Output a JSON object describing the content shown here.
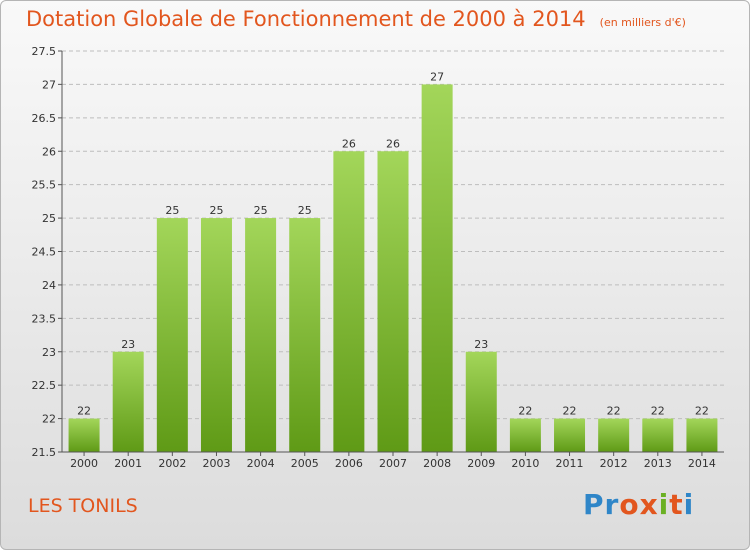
{
  "header": {
    "title": "Dotation Globale de Fonctionnement de 2000 à 2014",
    "unit": "(en milliers d'€)"
  },
  "footer": {
    "place": "LES TONILS",
    "logo_text": "Proxiti"
  },
  "colors": {
    "accent": "#e2561e",
    "bar_top": "#a3d65a",
    "bar_bottom": "#5f9a16",
    "logo": [
      "#2f86c8",
      "#2f86c8",
      "#e2561e",
      "#e2561e",
      "#6ab023",
      "#e2561e",
      "#2f86c8"
    ]
  },
  "chart_data": {
    "type": "bar",
    "title": "Dotation Globale de Fonctionnement de 2000 à 2014",
    "subtitle": "(en milliers d'€)",
    "xlabel": "",
    "ylabel": "",
    "categories": [
      "2000",
      "2001",
      "2002",
      "2003",
      "2004",
      "2005",
      "2006",
      "2007",
      "2008",
      "2009",
      "2010",
      "2011",
      "2012",
      "2013",
      "2014"
    ],
    "values": [
      22,
      23,
      25,
      25,
      25,
      25,
      26,
      26,
      27,
      23,
      22,
      22,
      22,
      22,
      22
    ],
    "ylim": [
      21.5,
      27.5
    ],
    "yticks": [
      21.5,
      22,
      22.5,
      23,
      23.5,
      24,
      24.5,
      25,
      25.5,
      26,
      26.5,
      27,
      27.5
    ],
    "grid": "horizontal dashed"
  }
}
